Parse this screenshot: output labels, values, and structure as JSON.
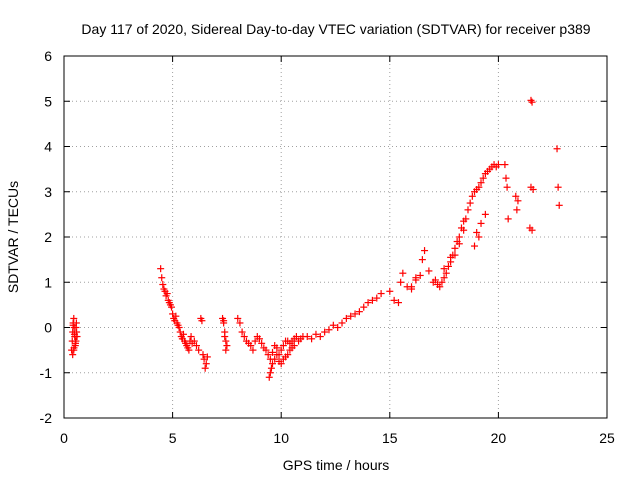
{
  "chart_data": {
    "type": "scatter",
    "title": "Day 117 of 2020, Sidereal Day-to-day VTEC variation (SDTVAR) for receiver p389",
    "xlabel": "GPS time / hours",
    "ylabel": "SDTVAR / TECUs",
    "xlim": [
      0,
      25
    ],
    "ylim": [
      -2,
      6
    ],
    "xticks": [
      0,
      5,
      10,
      15,
      20,
      25
    ],
    "yticks": [
      -2,
      -1,
      0,
      1,
      2,
      3,
      4,
      5,
      6
    ],
    "xtick_labels": [
      "0",
      "5",
      "10",
      "15",
      "20",
      "25"
    ],
    "ytick_labels": [
      "-2",
      "-1",
      "0",
      "1",
      "2",
      "3",
      "4",
      "5",
      "6"
    ],
    "grid": true,
    "legend": "none",
    "marker": "+",
    "color": "#ff0000",
    "series": [
      {
        "name": "SDTVAR",
        "x": [
          0.35,
          0.38,
          0.4,
          0.42,
          0.45,
          0.47,
          0.5,
          0.52,
          0.55,
          0.58,
          0.4,
          0.45,
          0.5,
          0.55,
          0.6,
          0.42,
          0.48,
          0.53,
          0.57,
          0.46,
          4.45,
          4.5,
          4.55,
          4.6,
          4.65,
          4.7,
          4.75,
          4.8,
          4.85,
          4.9,
          4.95,
          5.0,
          5.05,
          5.1,
          5.15,
          5.2,
          5.25,
          5.3,
          5.35,
          5.4,
          5.45,
          5.5,
          5.55,
          5.6,
          5.65,
          5.7,
          5.75,
          5.8,
          5.85,
          5.9,
          6.0,
          6.1,
          6.2,
          6.3,
          6.35,
          6.4,
          6.45,
          6.5,
          6.55,
          6.6,
          7.3,
          7.35,
          7.4,
          7.45,
          7.5,
          7.4,
          7.35,
          7.45,
          8.0,
          8.1,
          8.2,
          8.3,
          8.4,
          8.5,
          8.6,
          8.7,
          8.8,
          8.9,
          9.0,
          9.1,
          9.2,
          9.3,
          9.4,
          9.5,
          9.6,
          9.7,
          9.8,
          9.9,
          10.0,
          10.1,
          10.2,
          10.3,
          10.4,
          10.5,
          10.6,
          10.7,
          10.8,
          10.9,
          11.0,
          11.2,
          11.4,
          11.6,
          11.8,
          12.0,
          12.2,
          12.4,
          12.6,
          12.8,
          13.0,
          13.2,
          13.4,
          13.6,
          13.8,
          14.0,
          14.2,
          14.4,
          9.45,
          9.5,
          9.55,
          9.6,
          9.7,
          9.8,
          9.9,
          10.0,
          10.1,
          10.2,
          10.3,
          10.4,
          10.5,
          10.6,
          14.6,
          15.0,
          15.2,
          15.4,
          15.5,
          15.6,
          15.8,
          16.0,
          16.2,
          16.4,
          16.5,
          16.6,
          16.8,
          17.0,
          17.1,
          17.2,
          17.3,
          17.4,
          17.5,
          17.6,
          17.7,
          17.8,
          17.9,
          18.0,
          18.1,
          18.2,
          18.3,
          18.4,
          18.5,
          18.6,
          18.7,
          18.8,
          18.9,
          19.0,
          19.1,
          19.2,
          19.3,
          19.4,
          19.5,
          19.6,
          19.7,
          19.8,
          19.9,
          20.0,
          19.0,
          19.2,
          19.4,
          18.9,
          19.1,
          20.3,
          20.35,
          20.4,
          20.45,
          20.8,
          20.85,
          20.9,
          21.5,
          21.55,
          21.6,
          21.45,
          21.5,
          21.55,
          22.7,
          22.75,
          22.8,
          18.0,
          18.2,
          18.4,
          16.0,
          16.2,
          17.5,
          17.8
        ],
        "y": [
          -0.5,
          -0.3,
          -0.1,
          0.1,
          0.2,
          0.0,
          -0.2,
          -0.4,
          -0.3,
          -0.1,
          -0.6,
          -0.5,
          -0.2,
          0.0,
          -0.2,
          0.05,
          -0.15,
          -0.35,
          0.1,
          -0.45,
          1.3,
          1.1,
          0.95,
          0.85,
          0.8,
          0.7,
          0.75,
          0.6,
          0.55,
          0.5,
          0.45,
          0.3,
          0.2,
          0.15,
          0.25,
          0.1,
          0.05,
          0.0,
          -0.1,
          -0.2,
          -0.25,
          -0.15,
          -0.3,
          -0.35,
          -0.4,
          -0.45,
          -0.5,
          -0.3,
          -0.2,
          -0.35,
          -0.3,
          -0.4,
          -0.5,
          0.2,
          0.15,
          -0.6,
          -0.7,
          -0.9,
          -0.8,
          -0.65,
          0.2,
          0.1,
          -0.1,
          -0.3,
          -0.4,
          -0.2,
          0.15,
          -0.5,
          0.2,
          0.1,
          -0.1,
          -0.2,
          -0.3,
          -0.35,
          -0.4,
          -0.5,
          -0.3,
          -0.2,
          -0.25,
          -0.35,
          -0.45,
          -0.5,
          -0.6,
          -0.7,
          -0.55,
          -0.4,
          -0.45,
          -0.6,
          -0.5,
          -0.4,
          -0.3,
          -0.3,
          -0.35,
          -0.3,
          -0.25,
          -0.2,
          -0.3,
          -0.25,
          -0.2,
          -0.2,
          -0.25,
          -0.15,
          -0.2,
          -0.1,
          -0.05,
          0.05,
          0.0,
          0.1,
          0.2,
          0.25,
          0.3,
          0.35,
          0.45,
          0.55,
          0.6,
          0.65,
          -1.1,
          -1.0,
          -0.9,
          -0.8,
          -0.7,
          -0.6,
          -0.75,
          -0.8,
          -0.7,
          -0.65,
          -0.6,
          -0.5,
          -0.45,
          -0.4,
          0.75,
          0.8,
          0.6,
          0.55,
          1.0,
          1.2,
          0.9,
          0.85,
          1.05,
          1.15,
          1.5,
          1.7,
          1.25,
          1.0,
          1.05,
          0.95,
          0.9,
          1.0,
          1.1,
          1.2,
          1.35,
          1.45,
          1.6,
          1.75,
          1.9,
          2.0,
          2.2,
          2.35,
          2.4,
          2.6,
          2.75,
          2.9,
          3.0,
          3.05,
          3.1,
          3.2,
          3.3,
          3.4,
          3.45,
          3.5,
          3.55,
          3.6,
          3.55,
          3.6,
          2.1,
          2.3,
          2.5,
          1.8,
          2.0,
          3.6,
          3.3,
          3.1,
          2.4,
          2.9,
          2.6,
          2.8,
          5.02,
          4.98,
          3.05,
          2.2,
          3.1,
          2.15,
          3.95,
          3.1,
          2.7,
          1.6,
          1.85,
          2.15,
          0.9,
          1.1,
          1.3,
          1.55
        ]
      }
    ]
  }
}
